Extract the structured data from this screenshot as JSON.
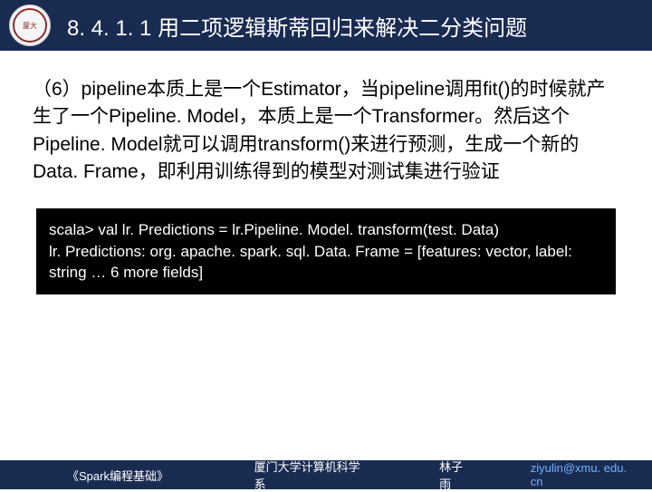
{
  "header": {
    "title": "8. 4. 1. 1 用二项逻辑斯蒂回归来解决二分类问题"
  },
  "body": {
    "paragraph": "（6）pipeline本质上是一个Estimator，当pipeline调用fit()的时候就产生了一个Pipeline. Model，本质上是一个Transformer。然后这个Pipeline. Model就可以调用transform()来进行预测，生成一个新的Data. Frame，即利用训练得到的模型对测试集进行验证"
  },
  "code": {
    "text": "scala> val lr. Predictions = lr.Pipeline. Model. transform(test. Data)\nlr. Predictions: org. apache. spark. sql. Data. Frame = [features: vector, label: string … 6 more fields]"
  },
  "footer": {
    "book": "《Spark编程基础》",
    "dept": "厦门大学计算机科学系",
    "author": "林子雨",
    "email": "ziyulin@xmu. edu. cn"
  },
  "colors": {
    "header_bg": "#1a2b52",
    "header_text": "#ffffff",
    "body_text": "#000000",
    "code_bg": "#000000",
    "code_text": "#ffffff",
    "footer_bg": "#1a2b52",
    "footer_text": "#ffffff",
    "footer_link": "#6db3ff",
    "logo_border": "#8b2e2e"
  },
  "fonts": {
    "title_size": 24,
    "paragraph_size": 21,
    "code_size": 17,
    "footer_size": 13
  }
}
